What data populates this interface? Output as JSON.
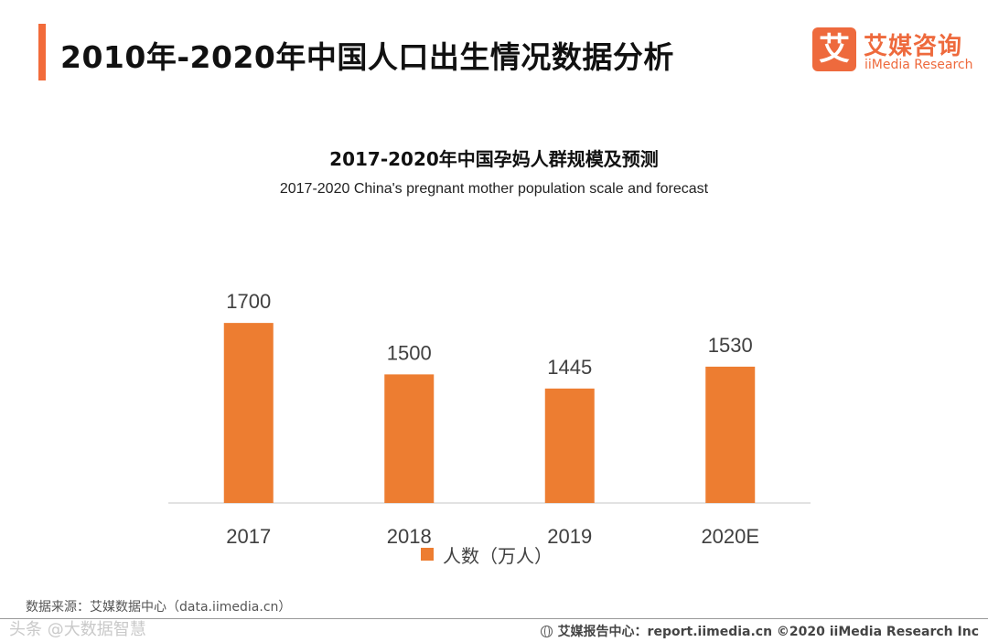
{
  "header": {
    "title": "2010年-2020年中国人口出生情况数据分析"
  },
  "logo": {
    "mark": "艾",
    "name_cn": "艾媒咨询",
    "name_en": "iiMedia Research",
    "brand_color": "#ee6a3d"
  },
  "chart_data": {
    "type": "bar",
    "title": "2017-2020年中国孕妈人群规模及预测",
    "subtitle": "2017-2020 China's pregnant mother population scale and forecast",
    "categories": [
      "2017",
      "2018",
      "2019",
      "2020E"
    ],
    "series": [
      {
        "name": "人数（万人）",
        "values": [
          1700,
          1500,
          1445,
          1530
        ],
        "color": "#ed7d31"
      }
    ],
    "data_labels": [
      "1700",
      "1500",
      "1445",
      "1530"
    ],
    "xlabel": "",
    "ylabel": "",
    "ylim": [
      1000,
      1800
    ],
    "grid": false,
    "y_axis_visible": false,
    "legend_position": "bottom"
  },
  "footer": {
    "source": "数据来源：艾媒数据中心（data.iimedia.cn）",
    "watermark": "头条 @大数据智慧",
    "report_center": "艾媒报告中心：report.iimedia.cn  ©2020  iiMedia Research  Inc"
  }
}
